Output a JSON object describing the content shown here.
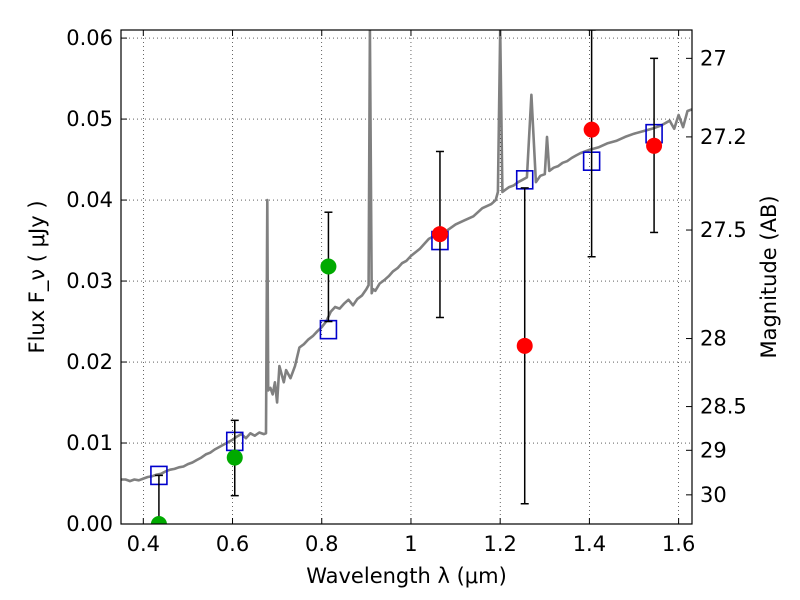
{
  "chart_data": {
    "type": "scatter",
    "xlabel": "Wavelength  λ (μm)",
    "ylabel": "Flux  F_ν  ( μJy )",
    "ylabel_right": "Magnitude (AB)",
    "xlim": [
      0.35,
      1.63
    ],
    "ylim": [
      0.0,
      0.061
    ],
    "grid": true,
    "x_ticks": [
      0.4,
      0.6,
      0.8,
      1.0,
      1.2,
      1.4,
      1.6
    ],
    "x_tick_labels": [
      "0.4",
      "0.6",
      "0.8",
      "1",
      "1.2",
      "1.4",
      "1.6"
    ],
    "y_ticks": [
      0.0,
      0.01,
      0.02,
      0.03,
      0.04,
      0.05,
      0.06
    ],
    "y_tick_labels": [
      "0.00",
      "0.01",
      "0.02",
      "0.03",
      "0.04",
      "0.05",
      "0.06"
    ],
    "right_axis_ticks": [
      {
        "label": "27",
        "flux": 0.0575
      },
      {
        "label": "27.2",
        "flux": 0.0478
      },
      {
        "label": "27.5",
        "flux": 0.0363
      },
      {
        "label": "28",
        "flux": 0.0229
      },
      {
        "label": "28.5",
        "flux": 0.0145
      },
      {
        "label": "29",
        "flux": 0.0091
      },
      {
        "label": "30",
        "flux": 0.0036
      }
    ],
    "series": [
      {
        "kind": "spectrum_line",
        "color": "#808080",
        "x": [
          0.35,
          0.36,
          0.37,
          0.38,
          0.39,
          0.4,
          0.41,
          0.42,
          0.43,
          0.44,
          0.45,
          0.46,
          0.47,
          0.48,
          0.49,
          0.5,
          0.51,
          0.52,
          0.53,
          0.54,
          0.55,
          0.56,
          0.57,
          0.58,
          0.59,
          0.6,
          0.61,
          0.62,
          0.63,
          0.64,
          0.65,
          0.66,
          0.67,
          0.675,
          0.678,
          0.68,
          0.685,
          0.69,
          0.695,
          0.7,
          0.705,
          0.71,
          0.715,
          0.72,
          0.73,
          0.74,
          0.75,
          0.76,
          0.77,
          0.78,
          0.79,
          0.8,
          0.81,
          0.82,
          0.83,
          0.84,
          0.85,
          0.86,
          0.87,
          0.88,
          0.89,
          0.9,
          0.905,
          0.908,
          0.912,
          0.915,
          0.92,
          0.93,
          0.94,
          0.95,
          0.96,
          0.97,
          0.98,
          0.99,
          1.0,
          1.02,
          1.04,
          1.06,
          1.08,
          1.1,
          1.12,
          1.14,
          1.16,
          1.18,
          1.19,
          1.195,
          1.2,
          1.205,
          1.21,
          1.22,
          1.23,
          1.24,
          1.25,
          1.26,
          1.27,
          1.28,
          1.29,
          1.3,
          1.305,
          1.31,
          1.32,
          1.33,
          1.34,
          1.35,
          1.36,
          1.37,
          1.38,
          1.39,
          1.4,
          1.42,
          1.44,
          1.46,
          1.48,
          1.5,
          1.52,
          1.54,
          1.56,
          1.58,
          1.59,
          1.6,
          1.61,
          1.62,
          1.63
        ],
        "y": [
          0.0055,
          0.0055,
          0.0053,
          0.0055,
          0.0054,
          0.0056,
          0.0058,
          0.0059,
          0.0061,
          0.0062,
          0.0065,
          0.0067,
          0.0068,
          0.007,
          0.0071,
          0.0074,
          0.0076,
          0.0079,
          0.0082,
          0.0086,
          0.0088,
          0.0092,
          0.0095,
          0.0098,
          0.0101,
          0.0104,
          0.0108,
          0.0111,
          0.0106,
          0.0112,
          0.0109,
          0.0113,
          0.0111,
          0.0112,
          0.04,
          0.0165,
          0.0168,
          0.016,
          0.0175,
          0.015,
          0.0195,
          0.0185,
          0.0175,
          0.019,
          0.018,
          0.0195,
          0.0218,
          0.0222,
          0.0228,
          0.0232,
          0.0238,
          0.0243,
          0.025,
          0.0262,
          0.0268,
          0.0266,
          0.0272,
          0.0277,
          0.027,
          0.0278,
          0.0282,
          0.029,
          0.0295,
          0.061,
          0.0285,
          0.029,
          0.0288,
          0.0297,
          0.0301,
          0.0306,
          0.0312,
          0.0316,
          0.0322,
          0.0325,
          0.0331,
          0.034,
          0.0352,
          0.0358,
          0.0362,
          0.037,
          0.0375,
          0.038,
          0.039,
          0.0395,
          0.04,
          0.041,
          0.061,
          0.041,
          0.0412,
          0.0416,
          0.0418,
          0.0422,
          0.0425,
          0.0428,
          0.053,
          0.0422,
          0.043,
          0.0432,
          0.0478,
          0.0436,
          0.044,
          0.0442,
          0.0446,
          0.0448,
          0.0452,
          0.0455,
          0.0458,
          0.046,
          0.0462,
          0.0465,
          0.047,
          0.0473,
          0.0478,
          0.0482,
          0.0485,
          0.0488,
          0.0492,
          0.0498,
          0.0488,
          0.0505,
          0.049,
          0.051,
          0.0512
        ]
      },
      {
        "kind": "model_photometry",
        "marker": "open-square",
        "color": "#0000cc",
        "x": [
          0.435,
          0.605,
          0.815,
          1.065,
          1.255,
          1.405,
          1.545
        ],
        "y": [
          0.006,
          0.0102,
          0.024,
          0.035,
          0.0425,
          0.0448,
          0.0482
        ]
      },
      {
        "kind": "measured_filled",
        "marker": "circle",
        "color": "#ff0000",
        "x": [
          1.065,
          1.255,
          1.405,
          1.545
        ],
        "y": [
          0.0358,
          0.022,
          0.0487,
          0.0467
        ],
        "yerr_low": [
          0.0255,
          0.0025,
          0.033,
          0.036
        ],
        "yerr_high": [
          0.046,
          0.0415,
          0.061,
          0.0575
        ]
      },
      {
        "kind": "measured_filled",
        "marker": "circle",
        "color": "#00aa00",
        "x": [
          0.435,
          0.605,
          0.815
        ],
        "y": [
          0.0,
          0.0082,
          0.0318
        ],
        "yerr_low": [
          0.0,
          0.0035,
          0.025
        ],
        "yerr_high": [
          0.006,
          0.0128,
          0.0385
        ]
      }
    ]
  }
}
